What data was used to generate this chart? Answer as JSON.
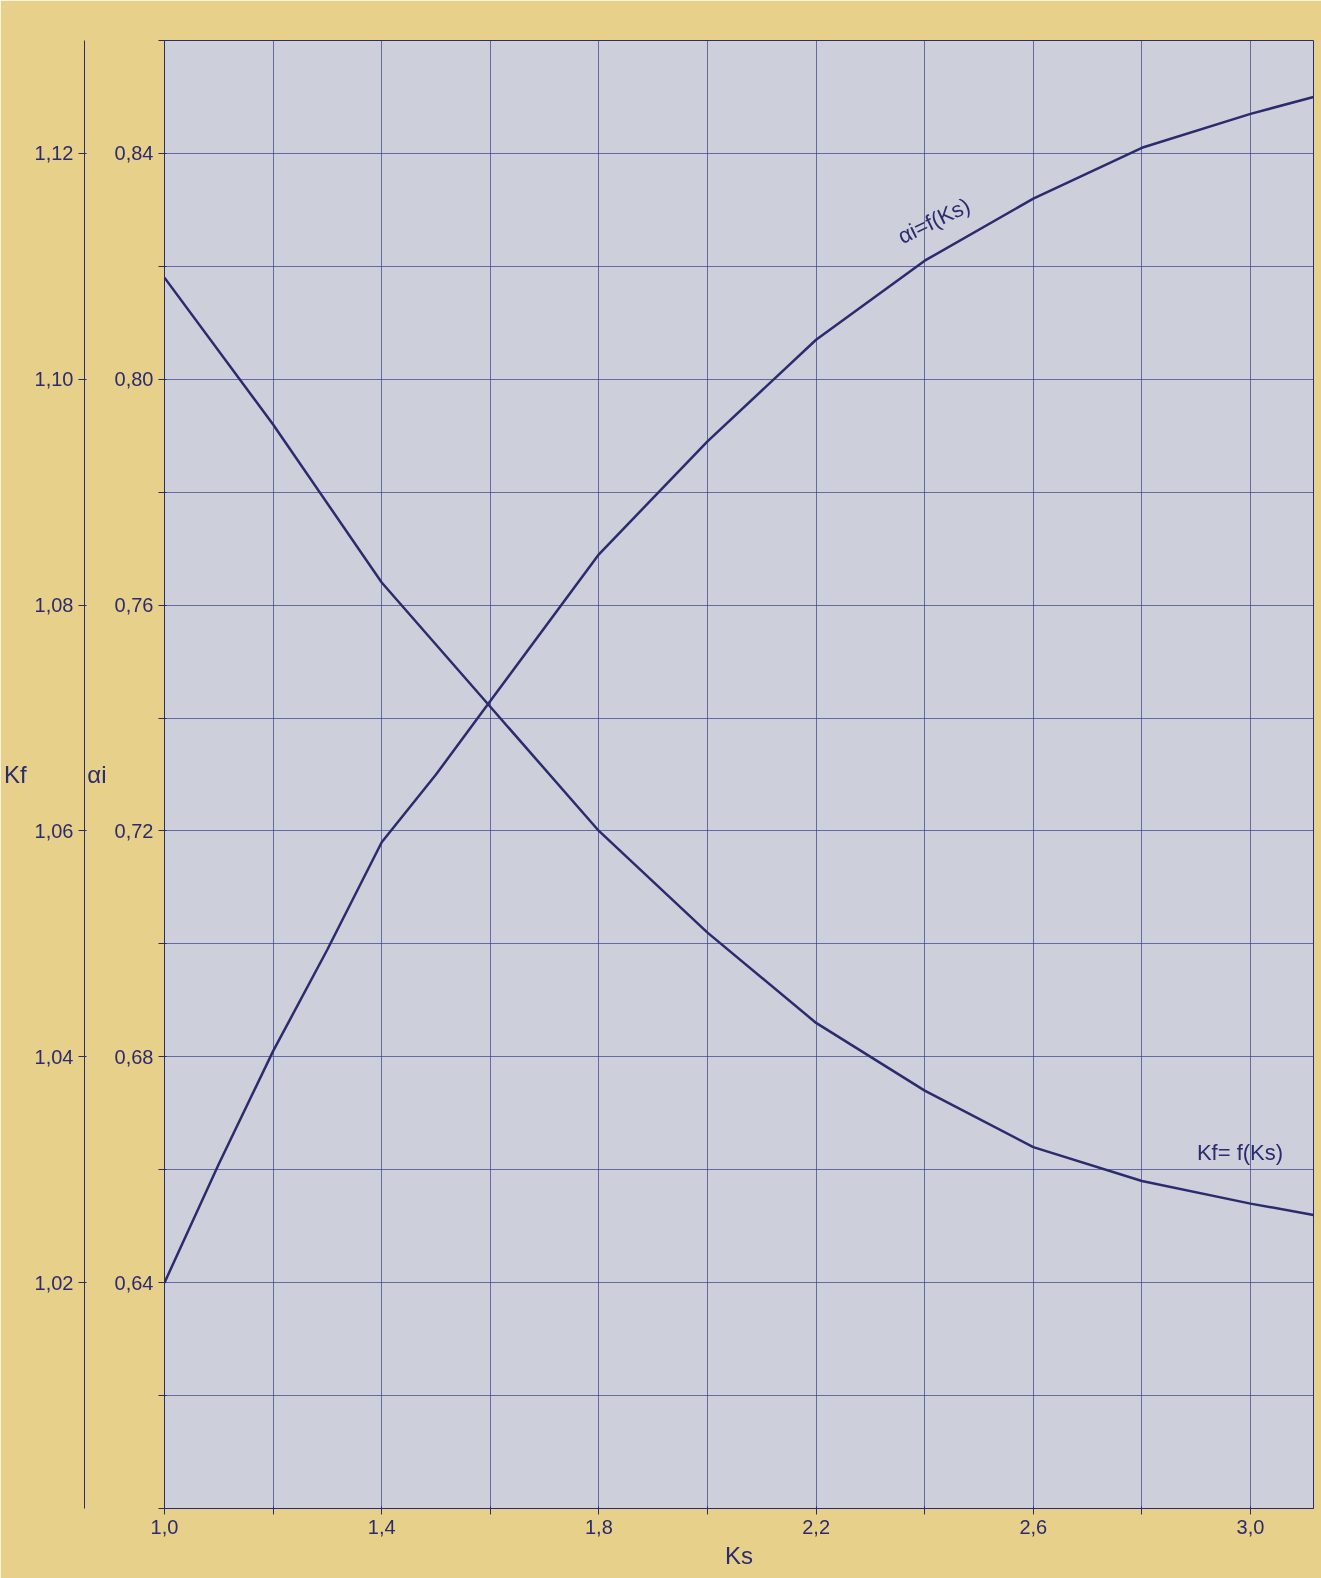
{
  "chart_data": {
    "type": "line",
    "xlabel": "Ks",
    "ylabel": "Kf",
    "y2label": "αi",
    "xlim": [
      1.0,
      3.116
    ],
    "ylim": [
      1.0,
      1.13
    ],
    "y2lim": [
      0.6,
      0.86
    ],
    "xticks": [
      {
        "value": 1.0,
        "label": "1,0"
      },
      {
        "value": 1.2,
        "label": null
      },
      {
        "value": 1.4,
        "label": "1,4"
      },
      {
        "value": 1.6,
        "label": null
      },
      {
        "value": 1.8,
        "label": "1,8"
      },
      {
        "value": 2.0,
        "label": null
      },
      {
        "value": 2.2,
        "label": "2,2"
      },
      {
        "value": 2.4,
        "label": null
      },
      {
        "value": 2.6,
        "label": "2,6"
      },
      {
        "value": 2.8,
        "label": null
      },
      {
        "value": 3.0,
        "label": "3,0"
      }
    ],
    "yticks": [
      {
        "value": 1.02,
        "label": "1,02"
      },
      {
        "value": 1.04,
        "label": "1,04"
      },
      {
        "value": 1.06,
        "label": "1,06"
      },
      {
        "value": 1.08,
        "label": "1,08"
      },
      {
        "value": 1.1,
        "label": "1,10"
      },
      {
        "value": 1.12,
        "label": "1,12"
      }
    ],
    "y2ticks": [
      {
        "value": 0.6,
        "label": null
      },
      {
        "value": 0.62,
        "label": null
      },
      {
        "value": 0.64,
        "label": "0,64"
      },
      {
        "value": 0.66,
        "label": null
      },
      {
        "value": 0.68,
        "label": "0,68"
      },
      {
        "value": 0.7,
        "label": null
      },
      {
        "value": 0.72,
        "label": "0,72"
      },
      {
        "value": 0.74,
        "label": null
      },
      {
        "value": 0.76,
        "label": "0,76"
      },
      {
        "value": 0.78,
        "label": null
      },
      {
        "value": 0.8,
        "label": "0,80"
      },
      {
        "value": 0.82,
        "label": null
      },
      {
        "value": 0.84,
        "label": "0,84"
      },
      {
        "value": 0.86,
        "label": null
      }
    ],
    "grid": true,
    "marker": "none",
    "line_style": "solid",
    "series": [
      {
        "name": "Kf= f(Ks)",
        "color": "#2b2b6e",
        "x": [
          1.0,
          1.2,
          1.4,
          1.6,
          1.8,
          2.0,
          2.2,
          2.4,
          2.6,
          2.8,
          3.0,
          3.116
        ],
        "values": [
          1.109,
          1.096,
          1.082,
          1.071,
          1.06,
          1.051,
          1.043,
          1.037,
          1.032,
          1.029,
          1.027,
          1.026
        ]
      },
      {
        "name": "αi=f(Ks)",
        "axis": "y2",
        "color": "#2b2b6e",
        "x": [
          1.0,
          1.1,
          1.2,
          1.3,
          1.4,
          1.5,
          1.6,
          1.8,
          2.0,
          2.2,
          2.4,
          2.6,
          2.8,
          3.0,
          3.116
        ],
        "values": [
          0.64,
          0.661,
          0.681,
          0.699,
          0.718,
          0.73,
          0.743,
          0.769,
          0.789,
          0.807,
          0.821,
          0.832,
          0.841,
          0.847,
          0.85
        ]
      }
    ]
  }
}
